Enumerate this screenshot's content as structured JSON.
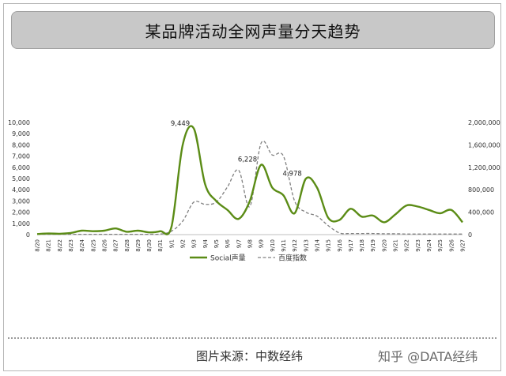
{
  "page": {
    "title": "某品牌活动全网声量分天趋势",
    "source": "图片来源：中数经纬",
    "watermark": "知乎 @DATA经纬"
  },
  "chart_data": {
    "type": "line",
    "title": "某品牌活动全网声量分天趋势",
    "x": [
      "8/20",
      "8/21",
      "8/22",
      "8/23",
      "8/24",
      "8/25",
      "8/26",
      "8/27",
      "8/28",
      "8/29",
      "8/30",
      "8/31",
      "9/1",
      "9/2",
      "9/3",
      "9/4",
      "9/5",
      "9/6",
      "9/7",
      "9/8",
      "9/9",
      "9/10",
      "9/11",
      "9/12",
      "9/13",
      "9/14",
      "9/15",
      "9/16",
      "9/17",
      "9/18",
      "9/19",
      "9/20",
      "9/21",
      "9/22",
      "9/23",
      "9/24",
      "9/25",
      "9/26",
      "9/27"
    ],
    "series": [
      {
        "name": "Social声量",
        "axis": "left",
        "color": "#5b8c16",
        "style": "solid",
        "values": [
          50,
          100,
          80,
          150,
          350,
          300,
          350,
          550,
          250,
          350,
          200,
          300,
          700,
          8000,
          9449,
          4500,
          3000,
          2200,
          1400,
          3000,
          6228,
          4200,
          3500,
          1900,
          4978,
          4200,
          1500,
          1300,
          2300,
          1600,
          1700,
          1100,
          1800,
          2600,
          2500,
          2200,
          1900,
          2200,
          1100
        ]
      },
      {
        "name": "百度指数",
        "axis": "right",
        "color": "#808080",
        "style": "dashed",
        "values": [
          5000,
          5000,
          5000,
          5000,
          5000,
          5000,
          5000,
          5000,
          5000,
          5000,
          5000,
          10000,
          60000,
          240000,
          580000,
          540000,
          580000,
          850000,
          1150000,
          500000,
          1630000,
          1420000,
          1400000,
          600000,
          400000,
          330000,
          160000,
          30000,
          20000,
          20000,
          20000,
          15000,
          15000,
          10000,
          10000,
          10000,
          10000,
          10000,
          10000
        ]
      }
    ],
    "y_left": {
      "range": [
        0,
        10000
      ],
      "ticks": [
        "0",
        "1,000",
        "2,000",
        "3,000",
        "4,000",
        "5,000",
        "6,000",
        "7,000",
        "8,000",
        "9,000",
        "10,000"
      ]
    },
    "y_right": {
      "range": [
        0,
        2000000
      ],
      "ticks": [
        "0",
        "400,000",
        "800,000",
        "1,200,000",
        "1,600,000",
        "2,000,000"
      ]
    },
    "annotations": [
      {
        "x": "9/3",
        "text": "9,449"
      },
      {
        "x": "9/9",
        "text": "6,228"
      },
      {
        "x": "9/13",
        "text": "4,978"
      }
    ],
    "grid": false,
    "legend": "bottom-center"
  }
}
